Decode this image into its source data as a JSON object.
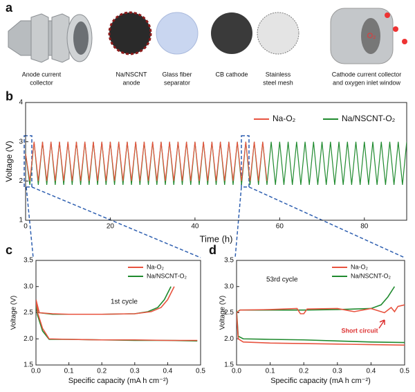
{
  "panel_labels": [
    "a",
    "b",
    "c",
    "d"
  ],
  "components": [
    [
      "Anode current",
      "collector"
    ],
    [
      "Na/NSCNT",
      "anode"
    ],
    [
      "Glass fiber",
      "separator"
    ],
    [
      "CB cathode"
    ],
    [
      "Stainless",
      "steel mesh"
    ],
    [
      "Cathode current collector",
      "and oxygen inlet window"
    ]
  ],
  "gas_label": "O₂",
  "chart_data": [
    {
      "type": "line",
      "xlabel": "Time (h)",
      "ylabel": "Voltage (V)",
      "xlim": [
        0,
        90
      ],
      "ylim": [
        1,
        4
      ],
      "xticks": [
        0,
        20,
        40,
        60,
        80
      ],
      "yticks": [
        1,
        2,
        3,
        4
      ],
      "legend": "top",
      "series": [
        {
          "name": "Na-O₂",
          "color": "#e8533f",
          "x": [
            0,
            1,
            2,
            3,
            4,
            5,
            6,
            7,
            8,
            9,
            10,
            11,
            12,
            13,
            14,
            15,
            16,
            17,
            18,
            19,
            20,
            21,
            22,
            23,
            24,
            25,
            26,
            27,
            28,
            29,
            30,
            31,
            32,
            33,
            34,
            35,
            36,
            37,
            38,
            39,
            40,
            41,
            42,
            43,
            44,
            45,
            46,
            47,
            48,
            49,
            50,
            51,
            52,
            53,
            54,
            55,
            56,
            57
          ],
          "values": [
            2.7,
            2.0,
            3.0,
            2.0,
            3.0,
            2.0,
            3.0,
            2.0,
            3.0,
            2.0,
            3.0,
            2.0,
            3.0,
            2.0,
            3.0,
            2.0,
            3.0,
            2.0,
            3.0,
            2.0,
            3.0,
            2.0,
            3.0,
            2.0,
            3.0,
            2.0,
            3.0,
            2.0,
            3.0,
            2.0,
            3.0,
            2.0,
            3.0,
            2.0,
            3.0,
            2.0,
            3.0,
            2.0,
            3.0,
            2.0,
            3.0,
            2.0,
            3.0,
            2.0,
            3.0,
            2.0,
            3.0,
            2.0,
            3.0,
            2.0,
            3.0,
            2.0,
            3.0,
            2.0,
            3.0,
            2.0,
            3.0,
            2.0
          ]
        },
        {
          "name": "Na/NSCNT-O₂",
          "color": "#1f8a2e",
          "x": [
            0,
            1,
            2,
            3,
            4,
            5,
            6,
            7,
            8,
            9,
            10,
            11,
            12,
            13,
            14,
            15,
            16,
            17,
            18,
            19,
            20,
            21,
            22,
            23,
            24,
            25,
            26,
            27,
            28,
            29,
            30,
            31,
            32,
            33,
            34,
            35,
            36,
            37,
            38,
            39,
            40,
            41,
            42,
            43,
            44,
            45,
            46,
            47,
            48,
            49,
            50,
            51,
            52,
            53,
            54,
            55,
            56,
            57,
            58,
            59,
            60,
            61,
            62,
            63,
            64,
            65,
            66,
            67,
            68,
            69,
            70,
            71,
            72,
            73,
            74,
            75,
            76,
            77,
            78,
            79,
            80,
            81,
            82,
            83,
            84,
            85,
            86,
            87,
            88,
            89,
            90
          ],
          "values": [
            2.7,
            1.9,
            3.0,
            1.9,
            3.0,
            1.9,
            3.0,
            1.9,
            3.0,
            1.9,
            3.0,
            1.9,
            3.0,
            1.9,
            3.0,
            1.9,
            3.0,
            1.9,
            3.0,
            1.9,
            3.0,
            1.9,
            3.0,
            1.9,
            3.0,
            1.9,
            3.0,
            1.9,
            3.0,
            1.9,
            3.0,
            1.9,
            3.0,
            1.9,
            3.0,
            1.9,
            3.0,
            1.9,
            3.0,
            1.9,
            3.0,
            1.9,
            3.0,
            1.9,
            3.0,
            1.9,
            3.0,
            1.9,
            3.0,
            1.9,
            3.0,
            1.9,
            3.0,
            1.9,
            3.0,
            1.9,
            3.0,
            1.9,
            3.0,
            1.9,
            3.0,
            1.9,
            3.0,
            1.9,
            3.0,
            1.9,
            3.0,
            1.9,
            3.0,
            1.9,
            3.0,
            1.9,
            3.0,
            1.9,
            3.0,
            1.9,
            3.0,
            1.9,
            3.0,
            1.9,
            3.0,
            1.9,
            3.0,
            1.9,
            3.0,
            1.9,
            3.0,
            1.9,
            3.0,
            1.9,
            3.0
          ]
        }
      ]
    },
    {
      "type": "line",
      "xlabel": "Specific capacity (mA h cm⁻²)",
      "ylabel": "Voltage (V)",
      "annotation": "1st cycle",
      "xlim": [
        0,
        0.5
      ],
      "ylim": [
        1.5,
        3.5
      ],
      "xticks": [
        {
          "value": 0,
          "label": "0.0"
        },
        0.1,
        0.2,
        0.3,
        0.4,
        0.5
      ],
      "yticks": [
        1.5,
        {
          "value": 2,
          "label": "2.0"
        },
        2.5,
        {
          "value": 3,
          "label": "3.0"
        },
        3.5
      ],
      "legend": "upper right",
      "series": [
        {
          "name": "Na-O₂",
          "color": "#e8533f",
          "x": [
            0,
            0.005,
            0.02,
            0.04,
            0.1,
            0.2,
            0.3,
            0.4,
            0.49,
            null,
            0,
            0.01,
            0.05,
            0.1,
            0.2,
            0.3,
            0.35,
            0.38,
            0.4,
            0.42
          ],
          "values": [
            2.75,
            2.5,
            2.2,
            2.0,
            1.99,
            1.98,
            1.98,
            1.97,
            1.97,
            null,
            2.75,
            2.5,
            2.48,
            2.47,
            2.47,
            2.48,
            2.52,
            2.6,
            2.75,
            3.0
          ]
        },
        {
          "name": "Na/NSCNT-O₂",
          "color": "#1f8a2e",
          "x": [
            0,
            0.005,
            0.02,
            0.04,
            0.1,
            0.2,
            0.3,
            0.4,
            0.49,
            null,
            0,
            0.01,
            0.05,
            0.1,
            0.2,
            0.3,
            0.34,
            0.37,
            0.39,
            0.41
          ],
          "values": [
            2.65,
            2.45,
            2.15,
            1.99,
            1.99,
            1.98,
            1.97,
            1.97,
            1.96,
            null,
            2.65,
            2.5,
            2.47,
            2.47,
            2.47,
            2.48,
            2.52,
            2.6,
            2.75,
            3.0
          ]
        }
      ]
    },
    {
      "type": "line",
      "xlabel": "Specific capacity (mA h cm⁻²)",
      "ylabel": "Voltage (V)",
      "annotation": "53rd cycle",
      "callout": "Short circuit",
      "xlim": [
        0,
        0.5
      ],
      "ylim": [
        1.5,
        3.5
      ],
      "xticks": [
        {
          "value": 0,
          "label": "0.0"
        },
        0.1,
        0.2,
        0.3,
        0.4,
        0.5
      ],
      "yticks": [
        1.5,
        {
          "value": 2,
          "label": "2.0"
        },
        2.5,
        {
          "value": 3,
          "label": "3.0"
        },
        3.5
      ],
      "legend": "upper right",
      "series": [
        {
          "name": "Na-O₂",
          "color": "#e8533f",
          "x": [
            0,
            0.005,
            0.02,
            0.1,
            0.2,
            0.3,
            0.4,
            0.5,
            null,
            0,
            0.01,
            0.1,
            0.18,
            0.19,
            0.2,
            0.21,
            0.3,
            0.35,
            0.4,
            0.44,
            0.46,
            0.47,
            0.48,
            0.5
          ],
          "values": [
            2.5,
            2.0,
            1.94,
            1.92,
            1.91,
            1.9,
            1.89,
            1.88,
            null,
            2.5,
            2.55,
            2.56,
            2.58,
            2.48,
            2.48,
            2.57,
            2.58,
            2.52,
            2.58,
            2.5,
            2.6,
            2.52,
            2.62,
            2.65
          ]
        },
        {
          "name": "Na/NSCNT-O₂",
          "color": "#1f8a2e",
          "x": [
            0,
            0.005,
            0.02,
            0.1,
            0.2,
            0.3,
            0.4,
            0.5,
            null,
            0,
            0.01,
            0.1,
            0.2,
            0.3,
            0.4,
            0.43,
            0.45,
            0.47
          ],
          "values": [
            2.55,
            2.05,
            2.0,
            1.99,
            1.98,
            1.96,
            1.94,
            1.93,
            null,
            2.5,
            2.55,
            2.55,
            2.55,
            2.56,
            2.58,
            2.65,
            2.8,
            3.0
          ]
        }
      ]
    }
  ]
}
